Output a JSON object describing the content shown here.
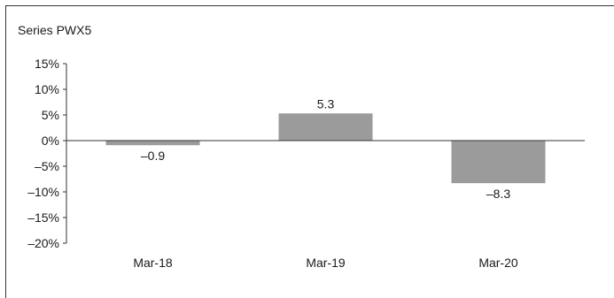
{
  "chart_data": {
    "type": "bar",
    "title": "Series PWX5",
    "xlabel": "",
    "ylabel": "",
    "categories": [
      "Mar-18",
      "Mar-19",
      "Mar-20"
    ],
    "values": [
      -0.9,
      5.3,
      -8.3
    ],
    "data_labels": [
      "–0.9",
      "5.3",
      "–8.3"
    ],
    "ylim": [
      -20,
      15
    ],
    "yticks": [
      15,
      10,
      5,
      0,
      -5,
      -10,
      -15,
      -20
    ],
    "ytick_labels": [
      "15%",
      "10%",
      "5%",
      "0%",
      "–5%",
      "–10%",
      "–15%",
      "–20%"
    ],
    "grid": false,
    "legend": "none",
    "bar_color": "#9b9b9b",
    "axis_color": "#333333",
    "text_color": "#1a1a1a"
  }
}
